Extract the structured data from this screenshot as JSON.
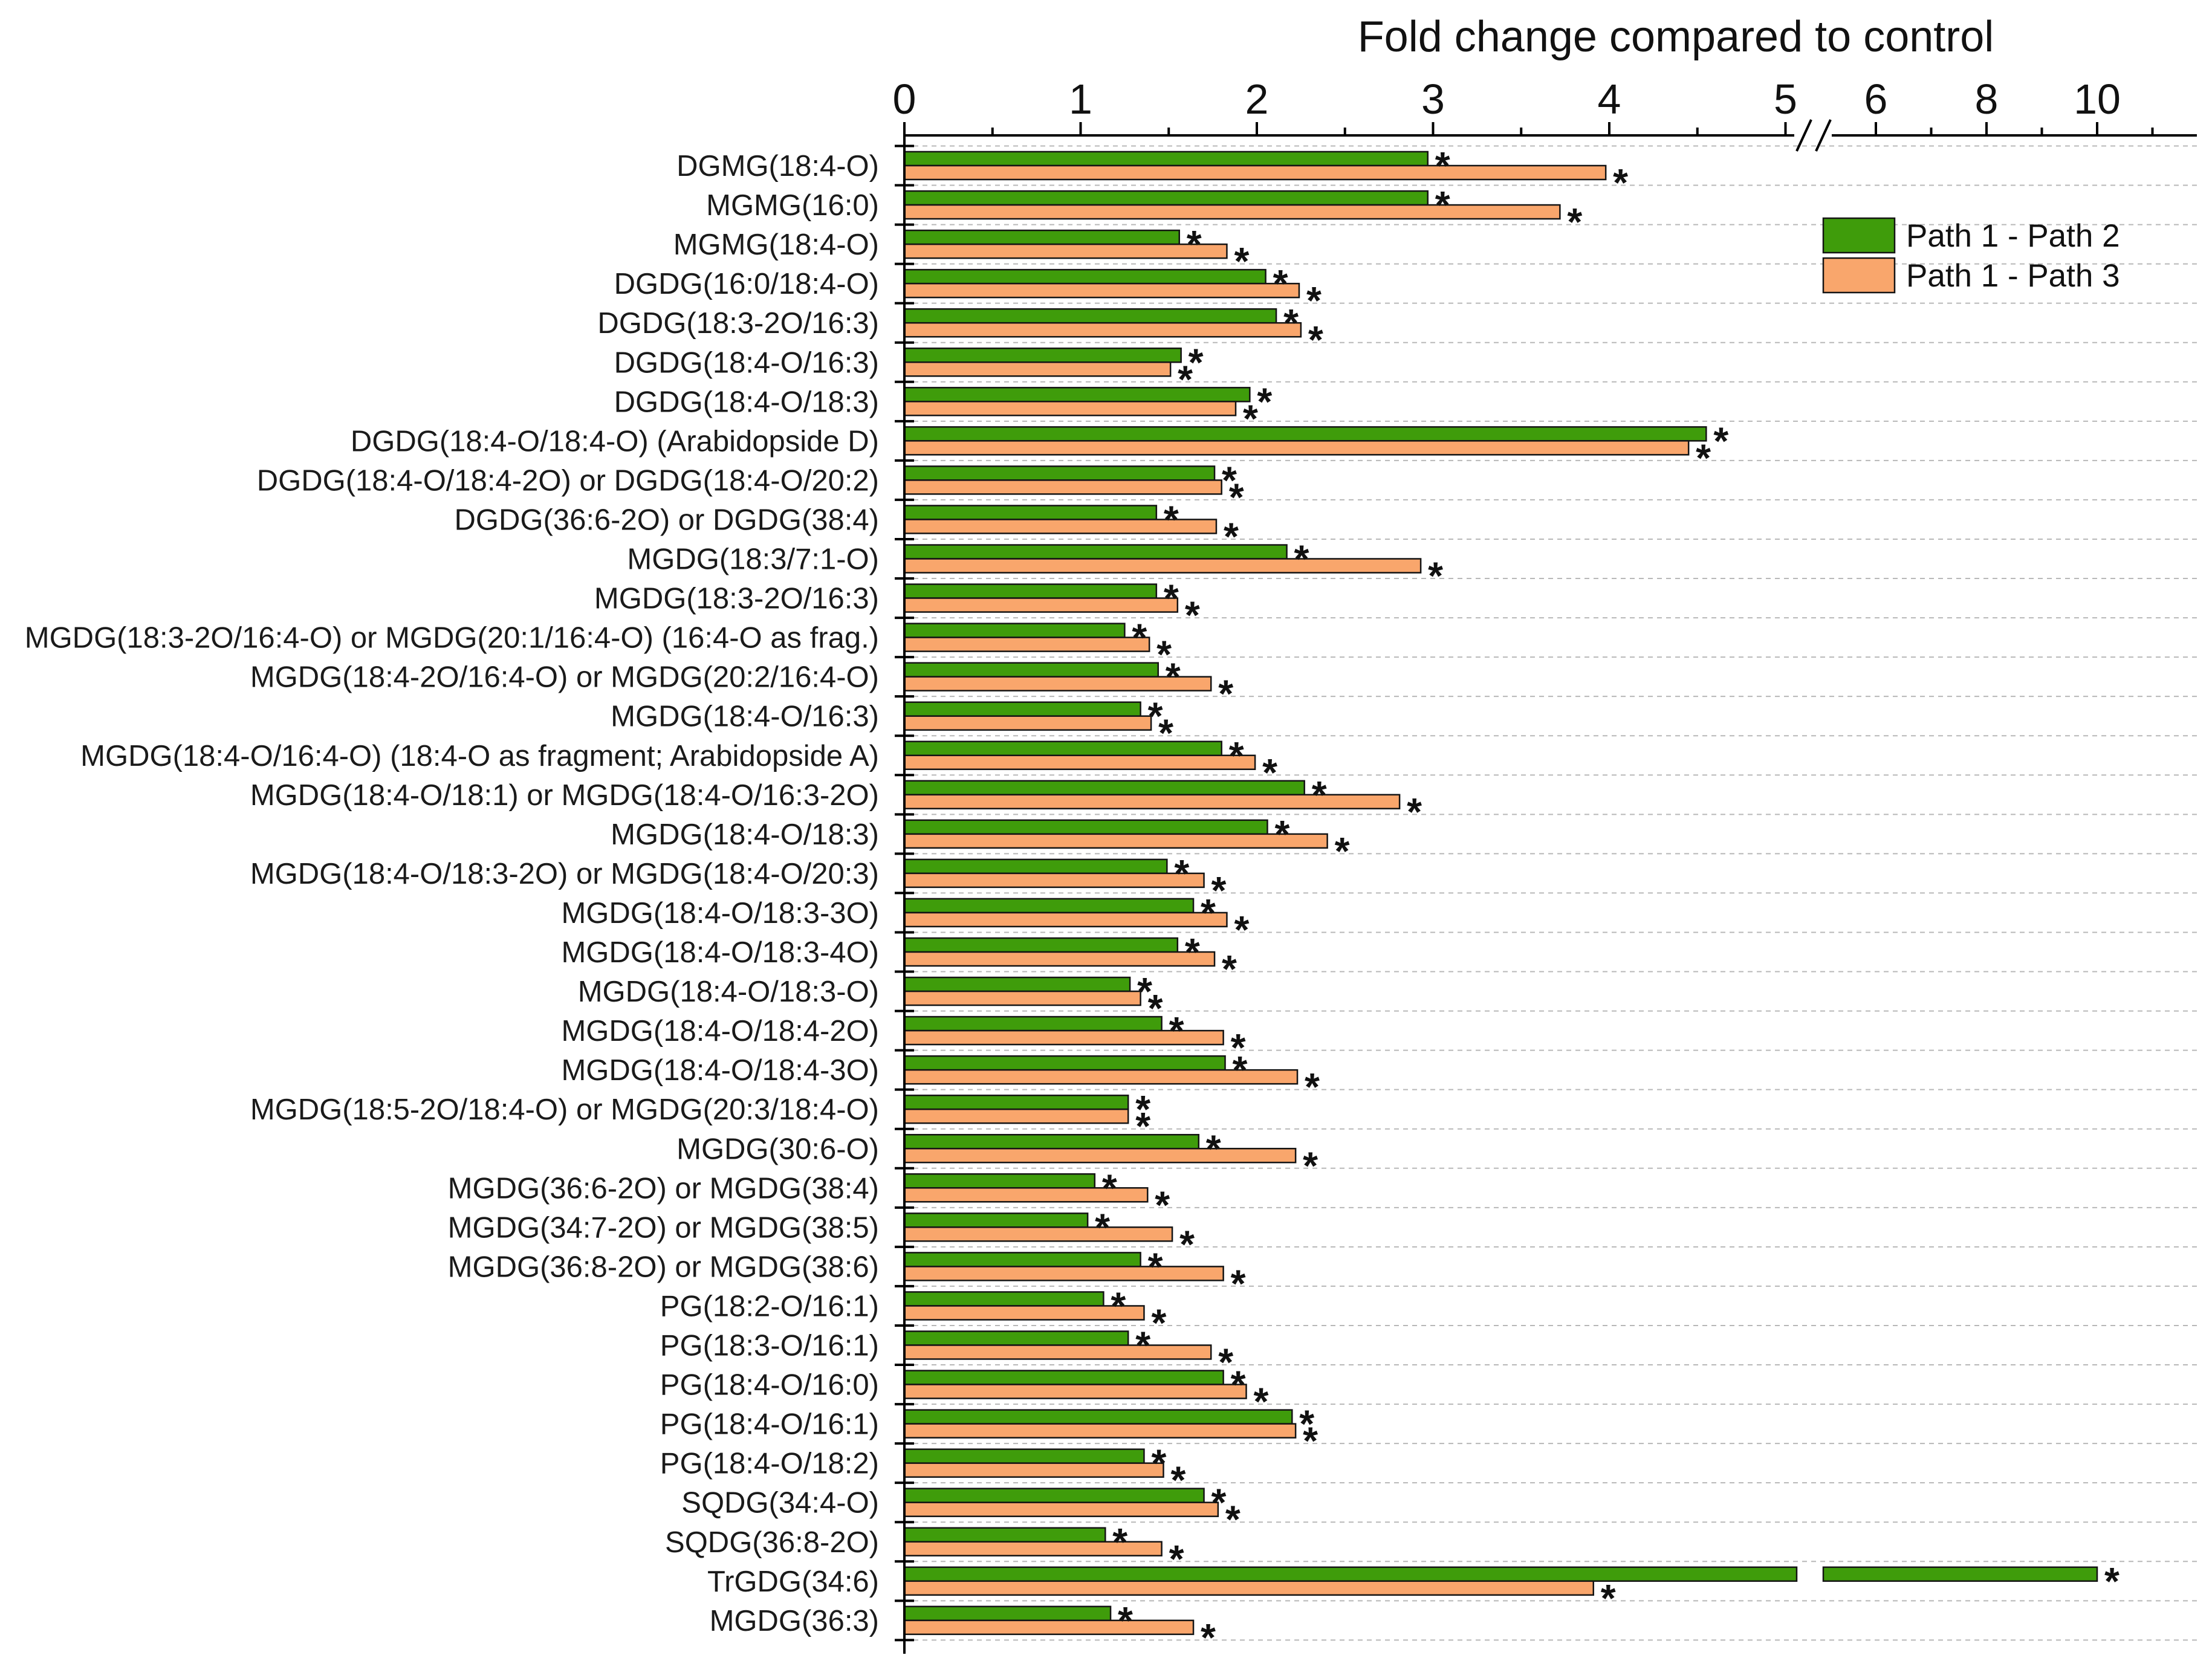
{
  "chart_data": {
    "type": "bar",
    "orientation": "horizontal",
    "title": "Fold change compared to control",
    "xlabel": "",
    "ylabel": "",
    "x_axis_position": "top",
    "xticks": [
      0,
      1,
      2,
      3,
      4,
      5,
      6,
      8,
      10
    ],
    "xticks_minor": [
      0.5,
      1.5,
      2.5,
      3.5,
      4.5,
      7,
      9,
      11
    ],
    "xlim": [
      0,
      11.8
    ],
    "x_axis_break_after": 5,
    "grid": true,
    "legend_position": "top-right",
    "categories": [
      "DGMG(18:4-O)",
      "MGMG(16:0)",
      "MGMG(18:4-O)",
      "DGDG(16:0/18:4-O)",
      "DGDG(18:3-2O/16:3)",
      "DGDG(18:4-O/16:3)",
      "DGDG(18:4-O/18:3)",
      "DGDG(18:4-O/18:4-O) (Arabidopside D)",
      "DGDG(18:4-O/18:4-2O) or DGDG(18:4-O/20:2)",
      "DGDG(36:6-2O) or DGDG(38:4)",
      "MGDG(18:3/7:1-O)",
      "MGDG(18:3-2O/16:3)",
      "MGDG(18:3-2O/16:4-O) or MGDG(20:1/16:4-O) (16:4-O as frag.)",
      "MGDG(18:4-2O/16:4-O) or MGDG(20:2/16:4-O)",
      "MGDG(18:4-O/16:3)",
      "MGDG(18:4-O/16:4-O) (18:4-O as fragment; Arabidopside A)",
      "MGDG(18:4-O/18:1) or MGDG(18:4-O/16:3-2O)",
      "MGDG(18:4-O/18:3)",
      "MGDG(18:4-O/18:3-2O) or MGDG(18:4-O/20:3)",
      "MGDG(18:4-O/18:3-3O)",
      "MGDG(18:4-O/18:3-4O)",
      "MGDG(18:4-O/18:3-O)",
      "MGDG(18:4-O/18:4-2O)",
      "MGDG(18:4-O/18:4-3O)",
      "MGDG(18:5-2O/18:4-O) or MGDG(20:3/18:4-O)",
      "MGDG(30:6-O)",
      "MGDG(36:6-2O) or MGDG(38:4)",
      "MGDG(34:7-2O) or MGDG(38:5)",
      "MGDG(36:8-2O) or MGDG(38:6)",
      "PG(18:2-O/16:1)",
      "PG(18:3-O/16:1)",
      "PG(18:4-O/16:0)",
      "PG(18:4-O/16:1)",
      "PG(18:4-O/18:2)",
      "SQDG(34:4-O)",
      "SQDG(36:8-2O)",
      "TrGDG(34:6)",
      "MGDG(36:3)"
    ],
    "series": [
      {
        "name": "Path 1 - Path 2",
        "color": "#3f9c0b",
        "marker": "*",
        "values": [
          2.97,
          2.97,
          1.56,
          2.05,
          2.11,
          1.57,
          1.96,
          4.55,
          1.76,
          1.43,
          2.17,
          1.43,
          1.25,
          1.44,
          1.34,
          1.8,
          2.27,
          2.06,
          1.49,
          1.64,
          1.55,
          1.28,
          1.46,
          1.82,
          1.27,
          1.67,
          1.08,
          1.04,
          1.34,
          1.13,
          1.27,
          1.81,
          2.2,
          1.36,
          1.7,
          1.14,
          10.0,
          1.17
        ]
      },
      {
        "name": "Path 1 - Path 3",
        "color": "#f9a66c",
        "marker": "*",
        "values": [
          3.98,
          3.72,
          1.83,
          2.24,
          2.25,
          1.51,
          1.88,
          4.45,
          1.8,
          1.77,
          2.93,
          1.55,
          1.39,
          1.74,
          1.4,
          1.99,
          2.81,
          2.4,
          1.7,
          1.83,
          1.76,
          1.34,
          1.81,
          2.23,
          1.27,
          2.22,
          1.38,
          1.52,
          1.81,
          1.36,
          1.74,
          1.94,
          2.22,
          1.47,
          1.78,
          1.46,
          3.91,
          1.64
        ]
      }
    ]
  }
}
